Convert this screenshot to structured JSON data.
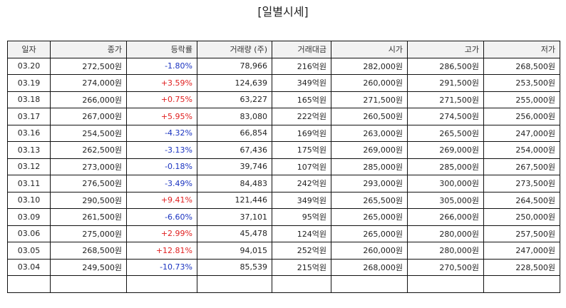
{
  "title": "[일별시세]",
  "columns": [
    "일자",
    "종가",
    "등락률",
    "거래량 (주)",
    "거래대금",
    "시가",
    "고가",
    "저가"
  ],
  "rows": [
    {
      "date": "03.20",
      "close": "272,500원",
      "change": "-1.80%",
      "dir": "down",
      "volume": "78,966",
      "amount": "216억원",
      "open": "282,000원",
      "high": "286,500원",
      "low": "268,500원"
    },
    {
      "date": "03.19",
      "close": "274,000원",
      "change": "+3.59%",
      "dir": "up",
      "volume": "124,639",
      "amount": "349억원",
      "open": "260,000원",
      "high": "291,500원",
      "low": "253,500원"
    },
    {
      "date": "03.18",
      "close": "266,000원",
      "change": "+0.75%",
      "dir": "up",
      "volume": "63,227",
      "amount": "165억원",
      "open": "271,500원",
      "high": "271,500원",
      "low": "255,000원"
    },
    {
      "date": "03.17",
      "close": "267,000원",
      "change": "+5.95%",
      "dir": "up",
      "volume": "83,080",
      "amount": "222억원",
      "open": "260,500원",
      "high": "274,500원",
      "low": "256,000원"
    },
    {
      "date": "03.16",
      "close": "254,500원",
      "change": "-4.32%",
      "dir": "down",
      "volume": "66,854",
      "amount": "169억원",
      "open": "263,000원",
      "high": "265,500원",
      "low": "247,000원"
    },
    {
      "date": "03.13",
      "close": "262,500원",
      "change": "-3.13%",
      "dir": "down",
      "volume": "67,436",
      "amount": "175억원",
      "open": "269,000원",
      "high": "269,000원",
      "low": "254,000원"
    },
    {
      "date": "03.12",
      "close": "273,000원",
      "change": "-0.18%",
      "dir": "down",
      "volume": "39,746",
      "amount": "107억원",
      "open": "285,000원",
      "high": "285,000원",
      "low": "267,500원"
    },
    {
      "date": "03.11",
      "close": "276,500원",
      "change": "-3.49%",
      "dir": "down",
      "volume": "84,483",
      "amount": "242억원",
      "open": "293,000원",
      "high": "300,000원",
      "low": "273,500원"
    },
    {
      "date": "03.10",
      "close": "290,500원",
      "change": "+9.41%",
      "dir": "up",
      "volume": "121,446",
      "amount": "349억원",
      "open": "265,500원",
      "high": "305,000원",
      "low": "264,500원"
    },
    {
      "date": "03.09",
      "close": "261,500원",
      "change": "-6.60%",
      "dir": "down",
      "volume": "37,101",
      "amount": "95억원",
      "open": "265,000원",
      "high": "266,000원",
      "low": "250,000원"
    },
    {
      "date": "03.06",
      "close": "275,000원",
      "change": "+2.99%",
      "dir": "up",
      "volume": "45,478",
      "amount": "124억원",
      "open": "265,000원",
      "high": "280,000원",
      "low": "257,500원"
    },
    {
      "date": "03.05",
      "close": "268,500원",
      "change": "+12.81%",
      "dir": "up",
      "volume": "94,015",
      "amount": "252억원",
      "open": "260,000원",
      "high": "280,000원",
      "low": "247,000원"
    },
    {
      "date": "03.04",
      "close": "249,500원",
      "change": "-10.73%",
      "dir": "down",
      "volume": "85,539",
      "amount": "215억원",
      "open": "268,000원",
      "high": "270,500원",
      "low": "228,500원"
    },
    {
      "date": "",
      "close": "",
      "change": "",
      "dir": "",
      "volume": "",
      "amount": "",
      "open": "",
      "high": "",
      "low": ""
    }
  ],
  "colors": {
    "up": "#e02020",
    "down": "#1a33c0",
    "header_bg": "#f2f2f2",
    "border": "#111111"
  }
}
